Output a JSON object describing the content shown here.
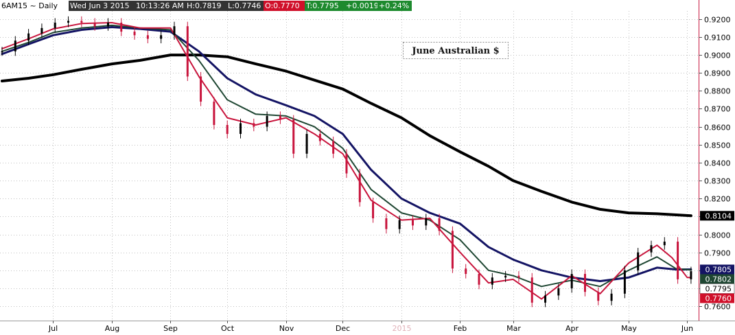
{
  "header": {
    "symbol": "6AM15 ~ Daily",
    "date": "Wed Jun 3 2015",
    "time": "10:13:26 AM",
    "high": "H:0.7819",
    "low": "L:0.7746",
    "open": "O:0.7770",
    "last": "T:0.7795",
    "change": "+0.0019",
    "change_pct": "+0.24%"
  },
  "colors": {
    "price_up": "#000000",
    "price_down": "#c8143c",
    "ma_fast": "#c8143c",
    "ma_medium": "#1e4632",
    "ma_slow": "#141464",
    "ma_long": "#000000",
    "header_dark": "#333333",
    "header_red": "#d0102a",
    "header_green": "#1d8a2e",
    "grid": "#c0c0c0"
  },
  "chart_data": {
    "type": "line",
    "title": "June Australian $",
    "ylim": [
      0.752,
      0.9245
    ],
    "y_ticks": [
      "0.9200",
      "0.9100",
      "0.9000",
      "0.8900",
      "0.8800",
      "0.8700",
      "0.8600",
      "0.8500",
      "0.8400",
      "0.8300",
      "0.8200",
      "0.8100",
      "0.8000",
      "0.7900",
      "0.7800",
      "0.7700",
      "0.7600"
    ],
    "x_labels": [
      "Jul",
      "Aug",
      "Sep",
      "Oct",
      "Nov",
      "Dec",
      "2015",
      "Feb",
      "Mar",
      "Apr",
      "May",
      "Jun"
    ],
    "grid": true,
    "series": [
      {
        "key": "ma_long",
        "points": [
          [
            "Jun 4",
            0.8855
          ],
          [
            "Jun 18",
            0.887
          ],
          [
            "Jul 1",
            0.889
          ],
          [
            "Jul 16",
            0.892
          ],
          [
            "Aug 1",
            0.895
          ],
          [
            "Aug 16",
            0.897
          ],
          [
            "Sep 1",
            0.9
          ],
          [
            "Sep 16",
            0.9
          ],
          [
            "Oct 1",
            0.899
          ],
          [
            "Oct 16",
            0.895
          ],
          [
            "Nov 1",
            0.891
          ],
          [
            "Nov 16",
            0.886
          ],
          [
            "Dec 1",
            0.881
          ],
          [
            "Dec 16",
            0.873
          ],
          [
            "Jan 1",
            0.865
          ],
          [
            "Jan 16",
            0.855
          ],
          [
            "Feb 1",
            0.846
          ],
          [
            "Feb 16",
            0.838
          ],
          [
            "Mar 1",
            0.83
          ],
          [
            "Mar 16",
            0.824
          ],
          [
            "Apr 1",
            0.818
          ],
          [
            "Apr 16",
            0.814
          ],
          [
            "May 1",
            0.812
          ],
          [
            "May 16",
            0.8115
          ],
          [
            "Jun 3",
            0.8104
          ]
        ]
      },
      {
        "key": "ma_slow",
        "points": [
          [
            "Jun 4",
            0.9005
          ],
          [
            "Jun 18",
            0.906
          ],
          [
            "Jul 1",
            0.911
          ],
          [
            "Jul 16",
            0.914
          ],
          [
            "Aug 1",
            0.9155
          ],
          [
            "Aug 16",
            0.9145
          ],
          [
            "Sep 1",
            0.913
          ],
          [
            "Sep 16",
            0.902
          ],
          [
            "Oct 1",
            0.887
          ],
          [
            "Oct 16",
            0.878
          ],
          [
            "Nov 1",
            0.872
          ],
          [
            "Nov 16",
            0.866
          ],
          [
            "Dec 1",
            0.856
          ],
          [
            "Dec 16",
            0.836
          ],
          [
            "Jan 1",
            0.82
          ],
          [
            "Jan 16",
            0.812
          ],
          [
            "Feb 1",
            0.806
          ],
          [
            "Feb 16",
            0.793
          ],
          [
            "Mar 1",
            0.786
          ],
          [
            "Mar 16",
            0.78
          ],
          [
            "Apr 1",
            0.776
          ],
          [
            "Apr 16",
            0.774
          ],
          [
            "May 1",
            0.776
          ],
          [
            "May 16",
            0.7815
          ],
          [
            "May 26",
            0.7805
          ],
          [
            "Jun 3",
            0.7805
          ]
        ]
      },
      {
        "key": "ma_medium",
        "points": [
          [
            "Jun 4",
            0.902
          ],
          [
            "Jun 18",
            0.907
          ],
          [
            "Jul 1",
            0.9125
          ],
          [
            "Jul 16",
            0.915
          ],
          [
            "Aug 1",
            0.9165
          ],
          [
            "Aug 16",
            0.915
          ],
          [
            "Sep 1",
            0.914
          ],
          [
            "Sep 16",
            0.897
          ],
          [
            "Oct 1",
            0.875
          ],
          [
            "Oct 16",
            0.867
          ],
          [
            "Nov 1",
            0.866
          ],
          [
            "Nov 16",
            0.86
          ],
          [
            "Dec 1",
            0.848
          ],
          [
            "Dec 16",
            0.825
          ],
          [
            "Jan 1",
            0.812
          ],
          [
            "Jan 16",
            0.808
          ],
          [
            "Feb 1",
            0.797
          ],
          [
            "Feb 16",
            0.78
          ],
          [
            "Mar 1",
            0.777
          ],
          [
            "Mar 16",
            0.771
          ],
          [
            "Apr 1",
            0.7745
          ],
          [
            "Apr 16",
            0.771
          ],
          [
            "May 1",
            0.78
          ],
          [
            "May 16",
            0.7875
          ],
          [
            "May 26",
            0.781
          ],
          [
            "Jun 3",
            0.7802
          ]
        ]
      },
      {
        "key": "ma_fast",
        "points": [
          [
            "Jun 4",
            0.9035
          ],
          [
            "Jun 18",
            0.909
          ],
          [
            "Jul 1",
            0.9145
          ],
          [
            "Jul 16",
            0.9175
          ],
          [
            "Aug 1",
            0.918
          ],
          [
            "Aug 16",
            0.915
          ],
          [
            "Sep 1",
            0.915
          ],
          [
            "Sep 16",
            0.888
          ],
          [
            "Oct 1",
            0.865
          ],
          [
            "Oct 16",
            0.861
          ],
          [
            "Nov 1",
            0.865
          ],
          [
            "Nov 16",
            0.856
          ],
          [
            "Dec 1",
            0.845
          ],
          [
            "Dec 16",
            0.819
          ],
          [
            "Jan 1",
            0.808
          ],
          [
            "Jan 16",
            0.809
          ],
          [
            "Feb 1",
            0.79
          ],
          [
            "Feb 16",
            0.773
          ],
          [
            "Mar 1",
            0.775
          ],
          [
            "Mar 16",
            0.764
          ],
          [
            "Apr 1",
            0.777
          ],
          [
            "Apr 16",
            0.767
          ],
          [
            "May 1",
            0.784
          ],
          [
            "May 16",
            0.794
          ],
          [
            "May 24",
            0.787
          ],
          [
            "Jun 1",
            0.776
          ],
          [
            "Jun 3",
            0.776
          ]
        ]
      },
      {
        "key": "price",
        "bars": [
          [
            "Jun 4",
            0.902
          ],
          [
            "Jun 11",
            0.908
          ],
          [
            "Jun 18",
            0.912
          ],
          [
            "Jun 25",
            0.915
          ],
          [
            "Jul 2",
            0.918
          ],
          [
            "Jul 9",
            0.919
          ],
          [
            "Jul 16",
            0.918
          ],
          [
            "Jul 23",
            0.916
          ],
          [
            "Jul 30",
            0.918
          ],
          [
            "Aug 6",
            0.913
          ],
          [
            "Aug 13",
            0.911
          ],
          [
            "Aug 20",
            0.909
          ],
          [
            "Aug 27",
            0.911
          ],
          [
            "Sep 3",
            0.916
          ],
          [
            "Sep 10",
            0.888
          ],
          [
            "Sep 17",
            0.874
          ],
          [
            "Sep 24",
            0.861
          ],
          [
            "Oct 1",
            0.856
          ],
          [
            "Oct 8",
            0.862
          ],
          [
            "Oct 15",
            0.86
          ],
          [
            "Oct 22",
            0.866
          ],
          [
            "Oct 29",
            0.864
          ],
          [
            "Nov 5",
            0.845
          ],
          [
            "Nov 12",
            0.856
          ],
          [
            "Nov 19",
            0.852
          ],
          [
            "Nov 26",
            0.845
          ],
          [
            "Dec 3",
            0.834
          ],
          [
            "Dec 10",
            0.818
          ],
          [
            "Dec 17",
            0.809
          ],
          [
            "Dec 24",
            0.803
          ],
          [
            "Dec 31",
            0.808
          ],
          [
            "Jan 7",
            0.805
          ],
          [
            "Jan 14",
            0.809
          ],
          [
            "Jan 21",
            0.802
          ],
          [
            "Jan 28",
            0.781
          ],
          [
            "Feb 4",
            0.778
          ],
          [
            "Feb 11",
            0.772
          ],
          [
            "Feb 18",
            0.776
          ],
          [
            "Feb 25",
            0.777
          ],
          [
            "Mar 4",
            0.776
          ],
          [
            "Mar 11",
            0.762
          ],
          [
            "Mar 18",
            0.766
          ],
          [
            "Mar 25",
            0.77
          ],
          [
            "Apr 1",
            0.778
          ],
          [
            "Apr 8",
            0.768
          ],
          [
            "Apr 15",
            0.763
          ],
          [
            "Apr 22",
            0.767
          ],
          [
            "Apr 29",
            0.78
          ],
          [
            "May 6",
            0.79
          ],
          [
            "May 13",
            0.794
          ],
          [
            "May 20",
            0.796
          ],
          [
            "May 27",
            0.775
          ],
          [
            "Jun 3",
            0.7795
          ]
        ]
      }
    ],
    "value_labels": [
      {
        "text": "0.8104",
        "series": "ma_long",
        "value": 0.8104
      },
      {
        "text": "0.7805",
        "series": "ma_slow",
        "value": 0.7805
      },
      {
        "text": "0.7802",
        "series": "ma_medium",
        "value": 0.7802
      },
      {
        "text": "0.7795",
        "series": "last",
        "value": 0.7795
      },
      {
        "text": "0.7760",
        "series": "ma_fast",
        "value": 0.776
      }
    ]
  }
}
